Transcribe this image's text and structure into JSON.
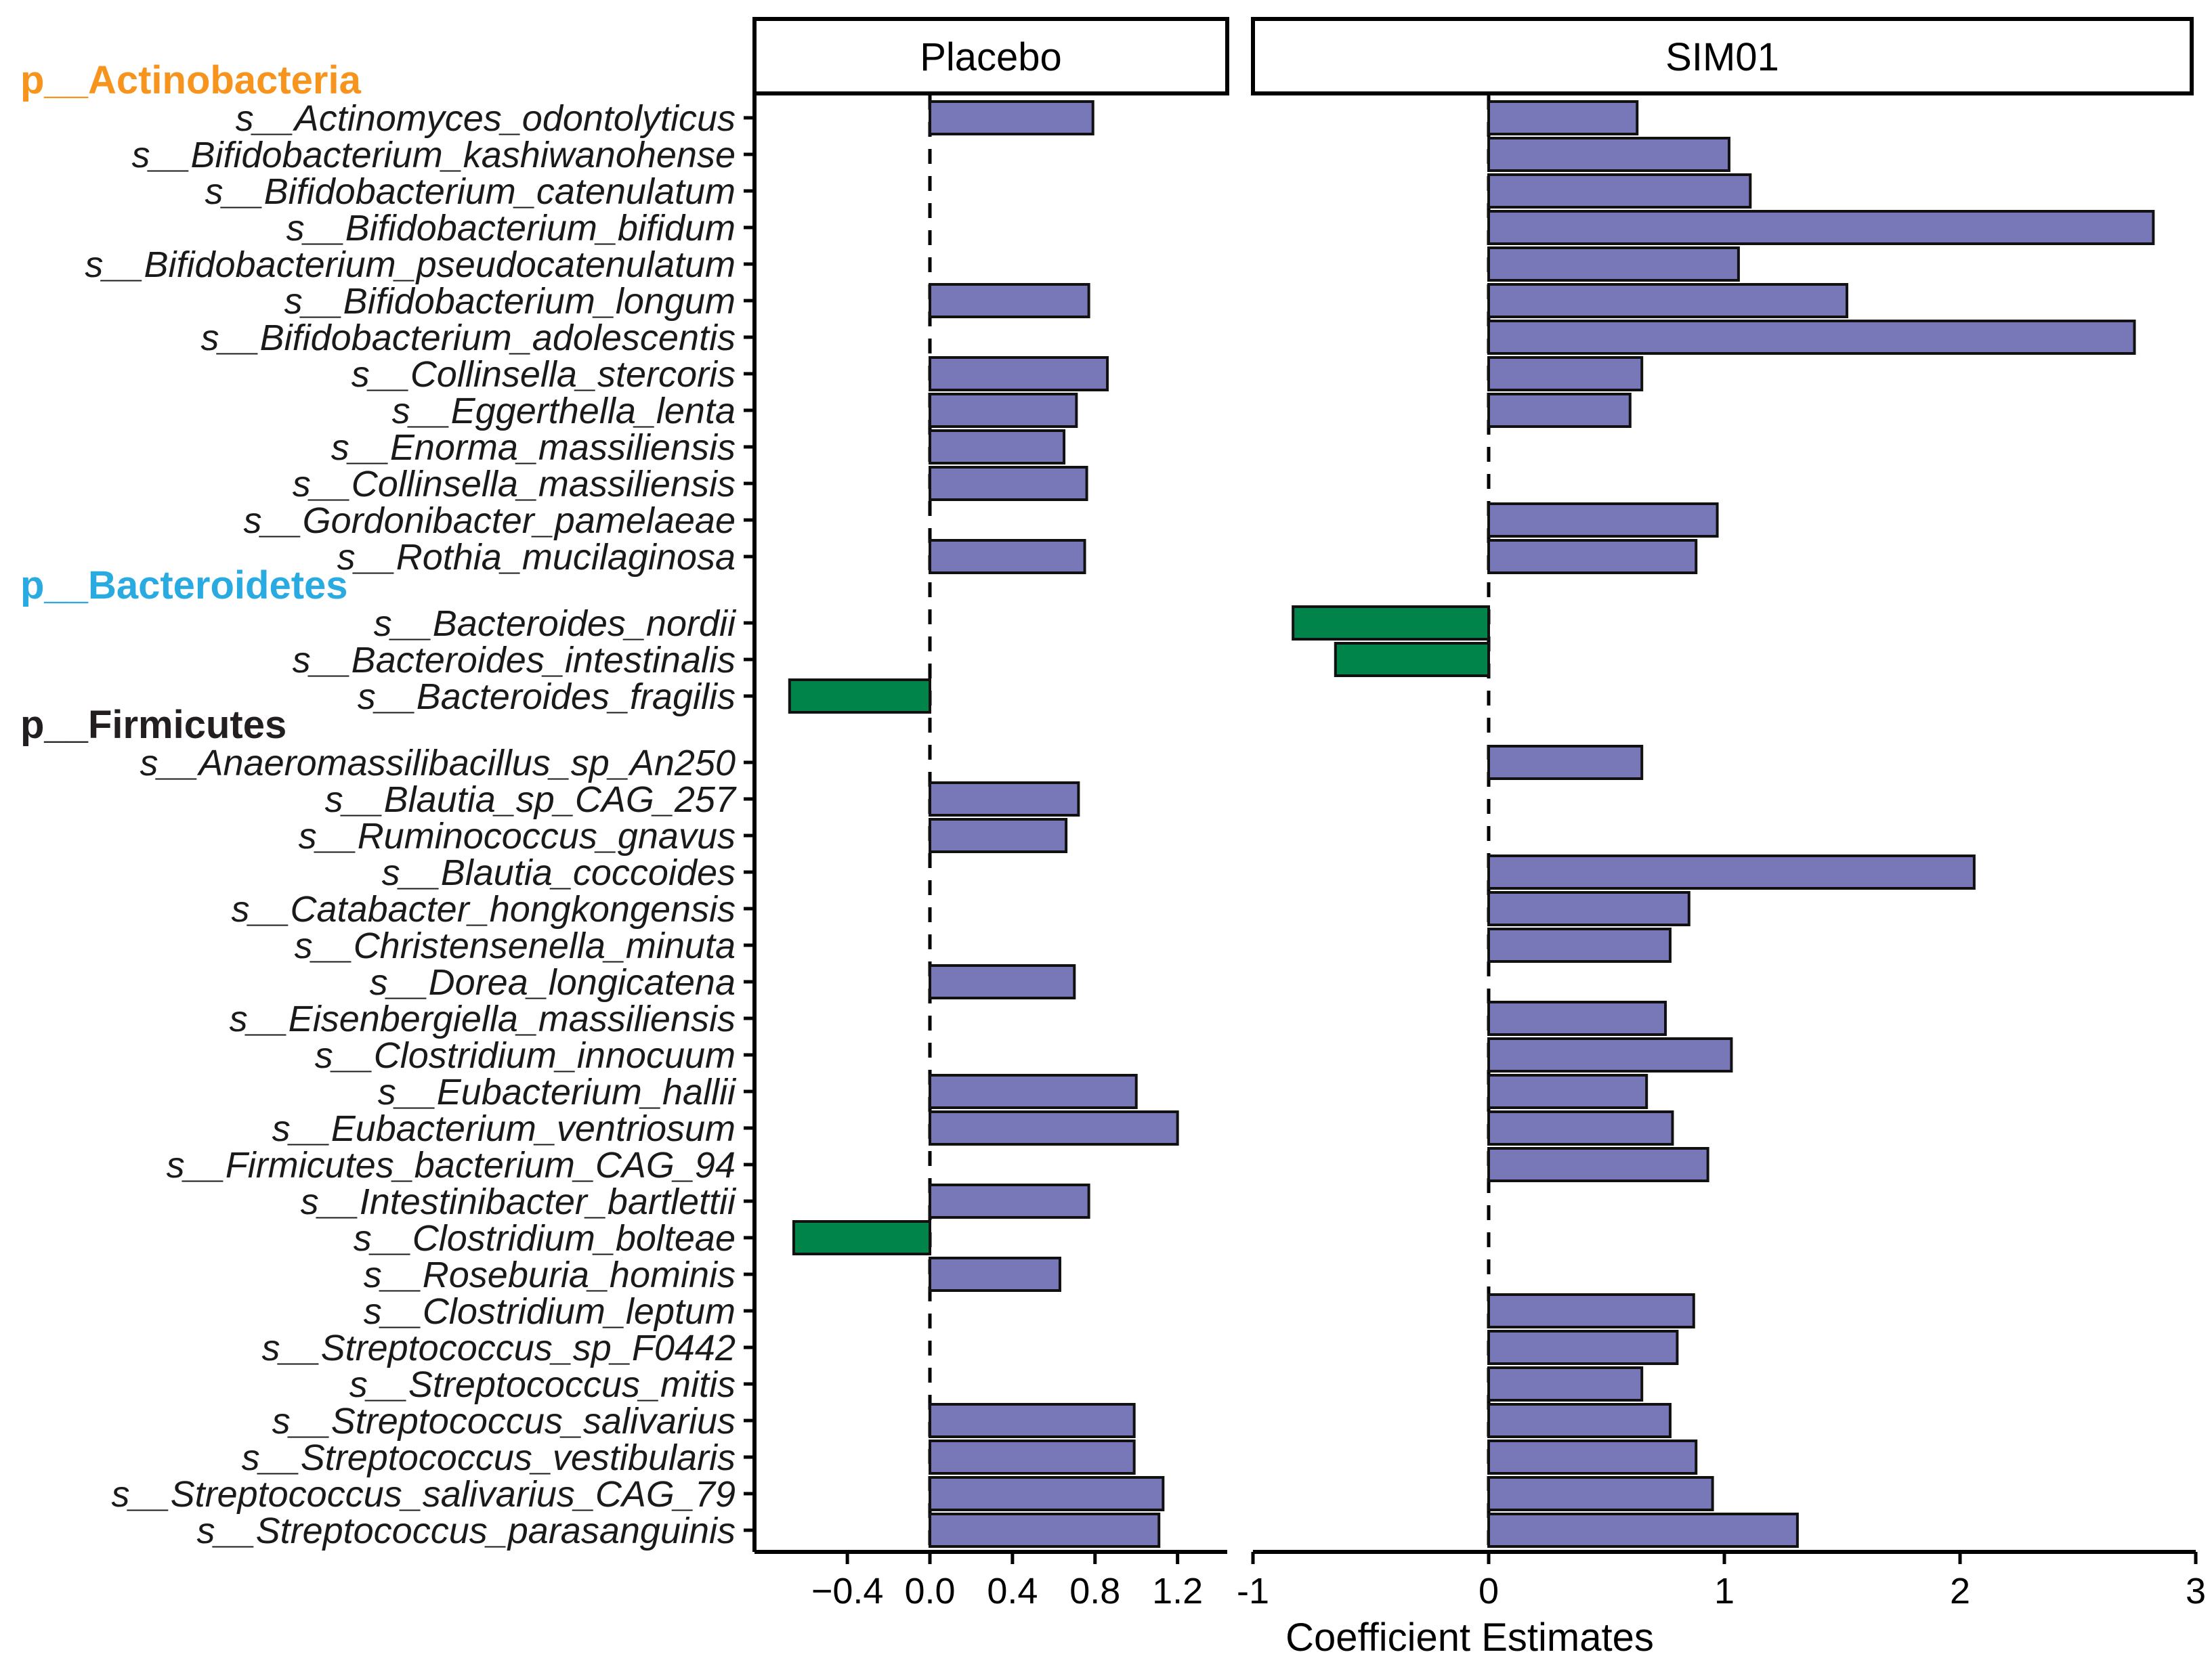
{
  "chart_data": {
    "type": "bar",
    "orientation": "horizontal",
    "xlabel": "Coefficient Estimates",
    "panels": [
      {
        "name": "Placebo",
        "xlim": [
          -0.85,
          1.38
        ],
        "ticks": [
          -0.4,
          0.0,
          0.4,
          0.8,
          1.2
        ],
        "tick_labels": [
          "−0.4",
          "0.0",
          "0.4",
          "0.8",
          "1.2"
        ]
      },
      {
        "name": "SIM01",
        "xlim": [
          -1.0,
          3.0
        ],
        "ticks": [
          -1,
          0,
          1,
          2,
          3
        ],
        "tick_labels": [
          "-1",
          "0",
          "1",
          "2",
          "3"
        ]
      }
    ],
    "colors": {
      "positive": "#7878b8",
      "negative": "#00844a"
    },
    "groups": [
      {
        "phylum": "p__Actinobacteria",
        "color": "#f7941d",
        "species": [
          {
            "name": "s__Actinomyces_odontolyticus",
            "placebo": 0.79,
            "sim01": 0.63
          },
          {
            "name": "s__Bifidobacterium_kashiwanohense",
            "placebo": null,
            "sim01": 1.02
          },
          {
            "name": "s__Bifidobacterium_catenulatum",
            "placebo": null,
            "sim01": 1.11
          },
          {
            "name": "s__Bifidobacterium_bifidum",
            "placebo": null,
            "sim01": 2.82
          },
          {
            "name": "s__Bifidobacterium_pseudocatenulatum",
            "placebo": null,
            "sim01": 1.06
          },
          {
            "name": "s__Bifidobacterium_longum",
            "placebo": 0.77,
            "sim01": 1.52
          },
          {
            "name": "s__Bifidobacterium_adolescentis",
            "placebo": null,
            "sim01": 2.74
          },
          {
            "name": "s__Collinsella_stercoris",
            "placebo": 0.86,
            "sim01": 0.65
          },
          {
            "name": "s__Eggerthella_lenta",
            "placebo": 0.71,
            "sim01": 0.6
          },
          {
            "name": "s__Enorma_massiliensis",
            "placebo": 0.65,
            "sim01": null
          },
          {
            "name": "s__Collinsella_massiliensis",
            "placebo": 0.76,
            "sim01": null
          },
          {
            "name": "s__Gordonibacter_pamelaeae",
            "placebo": null,
            "sim01": 0.97
          },
          {
            "name": "s__Rothia_mucilaginosa",
            "placebo": 0.75,
            "sim01": 0.88
          }
        ]
      },
      {
        "phylum": "p__Bacteroidetes",
        "color": "#29abe2",
        "species": [
          {
            "name": "s__Bacteroides_nordii",
            "placebo": null,
            "sim01": -0.83
          },
          {
            "name": "s__Bacteroides_intestinalis",
            "placebo": null,
            "sim01": -0.65
          },
          {
            "name": "s__Bacteroides_fragilis",
            "placebo": -0.68,
            "sim01": null
          }
        ]
      },
      {
        "phylum": "p__Firmicutes",
        "color": "#231f20",
        "species": [
          {
            "name": "s__Anaeromassilibacillus_sp_An250",
            "placebo": null,
            "sim01": 0.65
          },
          {
            "name": "s__Blautia_sp_CAG_257",
            "placebo": 0.72,
            "sim01": null
          },
          {
            "name": "s__Ruminococcus_gnavus",
            "placebo": 0.66,
            "sim01": null
          },
          {
            "name": "s__Blautia_coccoides",
            "placebo": null,
            "sim01": 2.06
          },
          {
            "name": "s__Catabacter_hongkongensis",
            "placebo": null,
            "sim01": 0.85
          },
          {
            "name": "s__Christensenella_minuta",
            "placebo": null,
            "sim01": 0.77
          },
          {
            "name": "s__Dorea_longicatena",
            "placebo": 0.7,
            "sim01": null
          },
          {
            "name": "s__Eisenbergiella_massiliensis",
            "placebo": null,
            "sim01": 0.75
          },
          {
            "name": "s__Clostridium_innocuum",
            "placebo": null,
            "sim01": 1.03
          },
          {
            "name": "s__Eubacterium_hallii",
            "placebo": 1.0,
            "sim01": 0.67
          },
          {
            "name": "s__Eubacterium_ventriosum",
            "placebo": 1.2,
            "sim01": 0.78
          },
          {
            "name": "s__Firmicutes_bacterium_CAG_94",
            "placebo": null,
            "sim01": 0.93
          },
          {
            "name": "s__Intestinibacter_bartlettii",
            "placebo": 0.77,
            "sim01": null
          },
          {
            "name": "s__Clostridium_bolteae",
            "placebo": -0.66,
            "sim01": null
          },
          {
            "name": "s__Roseburia_hominis",
            "placebo": 0.63,
            "sim01": null
          },
          {
            "name": "s__Clostridium_leptum",
            "placebo": null,
            "sim01": 0.87
          },
          {
            "name": "s__Streptococcus_sp_F0442",
            "placebo": null,
            "sim01": 0.8
          },
          {
            "name": "s__Streptococcus_mitis",
            "placebo": null,
            "sim01": 0.65
          },
          {
            "name": "s__Streptococcus_salivarius",
            "placebo": 0.99,
            "sim01": 0.77
          },
          {
            "name": "s__Streptococcus_vestibularis",
            "placebo": 0.99,
            "sim01": 0.88
          },
          {
            "name": "s__Streptococcus_salivarius_CAG_79",
            "placebo": 1.13,
            "sim01": 0.95
          },
          {
            "name": "s__Streptococcus_parasanguinis",
            "placebo": 1.11,
            "sim01": 1.31
          }
        ]
      }
    ]
  }
}
